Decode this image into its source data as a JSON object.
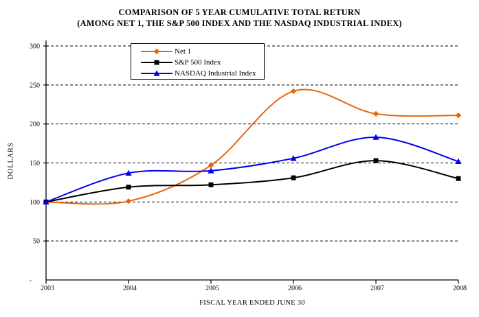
{
  "title": {
    "line1": "COMPARISON OF 5 YEAR CUMULATIVE TOTAL RETURN",
    "line2": "(AMONG NET 1, THE S&P 500 INDEX AND THE NASDAQ INDUSTRIAL INDEX)"
  },
  "y_axis": {
    "title": "DOLLARS",
    "tick_labels": [
      "300",
      "250",
      "200",
      "150",
      "100",
      "50",
      "-"
    ],
    "tick_values": [
      300,
      250,
      200,
      150,
      100,
      50,
      0
    ]
  },
  "x_axis": {
    "title": "FISCAL YEAR ENDED JUNE 30",
    "tick_labels": [
      "2003",
      "2004",
      "2005",
      "2006",
      "2007",
      "2008"
    ]
  },
  "chart_data": {
    "type": "line",
    "title": "COMPARISON OF 5 YEAR CUMULATIVE TOTAL RETURN (AMONG NET 1, THE S&P 500 INDEX AND THE NASDAQ INDUSTRIAL INDEX)",
    "x": [
      2003,
      2004,
      2005,
      2006,
      2007,
      2008
    ],
    "xlabel": "FISCAL YEAR ENDED JUNE 30",
    "ylabel": "DOLLARS",
    "ylim": [
      0,
      300
    ],
    "y_tick_step": 50,
    "grid": "horizontal-dashed",
    "line_style": "smoothed",
    "legend_position": "top-center-inside",
    "series": [
      {
        "name": "Net 1",
        "color": "#E8650C",
        "marker": "diamond",
        "values": [
          100,
          101,
          147,
          242,
          213,
          211
        ]
      },
      {
        "name": "S&P 500 Index",
        "color": "#000000",
        "marker": "square",
        "values": [
          100,
          119,
          122,
          131,
          153,
          130
        ]
      },
      {
        "name": "NASDAQ Industrial Index",
        "color": "#0000EE",
        "marker": "triangle",
        "values": [
          100,
          137,
          140,
          156,
          183,
          152
        ]
      }
    ]
  }
}
